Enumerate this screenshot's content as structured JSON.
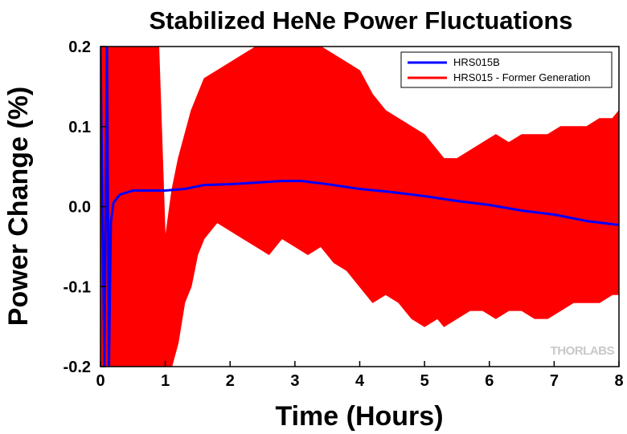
{
  "chart_data": {
    "type": "line",
    "title": "Stabilized HeNe Power Fluctuations",
    "xlabel": "Time (Hours)",
    "ylabel": "Power Change (%)",
    "xlim": [
      0,
      8
    ],
    "ylim": [
      -0.2,
      0.2
    ],
    "x_ticks": [
      "0",
      "1",
      "2",
      "3",
      "4",
      "5",
      "6",
      "7",
      "8"
    ],
    "y_ticks": [
      "-0.2",
      "-0.1",
      "0.0",
      "0.1",
      "0.2"
    ],
    "grid": false,
    "legend_position": "top-right",
    "series": [
      {
        "name": "HRS015B",
        "color": "#0000ff",
        "style": "line",
        "x": [
          0.0,
          0.06,
          0.1,
          0.13,
          0.16,
          0.2,
          0.3,
          0.5,
          0.7,
          1.0,
          1.3,
          1.6,
          2.0,
          2.4,
          2.8,
          3.1,
          3.5,
          4.0,
          4.5,
          5.0,
          5.5,
          6.0,
          6.5,
          7.0,
          7.5,
          8.0
        ],
        "y": [
          0.2,
          -0.2,
          0.2,
          -0.2,
          -0.02,
          0.005,
          0.015,
          0.02,
          0.02,
          0.02,
          0.022,
          0.027,
          0.028,
          0.03,
          0.032,
          0.032,
          0.028,
          0.022,
          0.018,
          0.013,
          0.007,
          0.002,
          -0.005,
          -0.01,
          -0.018,
          -0.023
        ]
      },
      {
        "name": "HRS015 - Former Generation",
        "color": "#ff0000",
        "style": "band",
        "x": [
          0.0,
          0.2,
          0.4,
          0.5,
          0.6,
          0.7,
          0.8,
          0.9,
          1.0,
          1.1,
          1.2,
          1.3,
          1.4,
          1.5,
          1.6,
          1.8,
          2.0,
          2.2,
          2.4,
          2.6,
          2.8,
          3.0,
          3.2,
          3.4,
          3.6,
          3.8,
          4.0,
          4.2,
          4.4,
          4.6,
          4.8,
          5.0,
          5.2,
          5.3,
          5.5,
          5.7,
          5.9,
          6.1,
          6.3,
          6.5,
          6.7,
          6.9,
          7.1,
          7.3,
          7.5,
          7.7,
          7.9,
          8.0
        ],
        "upper": [
          0.2,
          0.2,
          0.2,
          0.2,
          0.2,
          0.2,
          0.2,
          0.2,
          -0.04,
          0.02,
          0.06,
          0.09,
          0.12,
          0.14,
          0.16,
          0.17,
          0.18,
          0.19,
          0.2,
          0.2,
          0.2,
          0.2,
          0.2,
          0.2,
          0.19,
          0.18,
          0.17,
          0.14,
          0.12,
          0.11,
          0.1,
          0.09,
          0.07,
          0.06,
          0.06,
          0.07,
          0.08,
          0.09,
          0.08,
          0.09,
          0.09,
          0.09,
          0.1,
          0.1,
          0.1,
          0.11,
          0.11,
          0.12
        ],
        "lower": [
          -0.2,
          -0.2,
          -0.2,
          -0.2,
          -0.2,
          -0.2,
          -0.2,
          -0.2,
          -0.2,
          -0.2,
          -0.17,
          -0.12,
          -0.1,
          -0.06,
          -0.04,
          -0.02,
          -0.03,
          -0.04,
          -0.05,
          -0.06,
          -0.04,
          -0.05,
          -0.06,
          -0.05,
          -0.07,
          -0.08,
          -0.1,
          -0.12,
          -0.11,
          -0.12,
          -0.14,
          -0.15,
          -0.14,
          -0.15,
          -0.14,
          -0.13,
          -0.13,
          -0.14,
          -0.13,
          -0.13,
          -0.14,
          -0.14,
          -0.13,
          -0.12,
          -0.12,
          -0.12,
          -0.11,
          -0.11
        ]
      }
    ]
  },
  "watermark": "THORLABS"
}
